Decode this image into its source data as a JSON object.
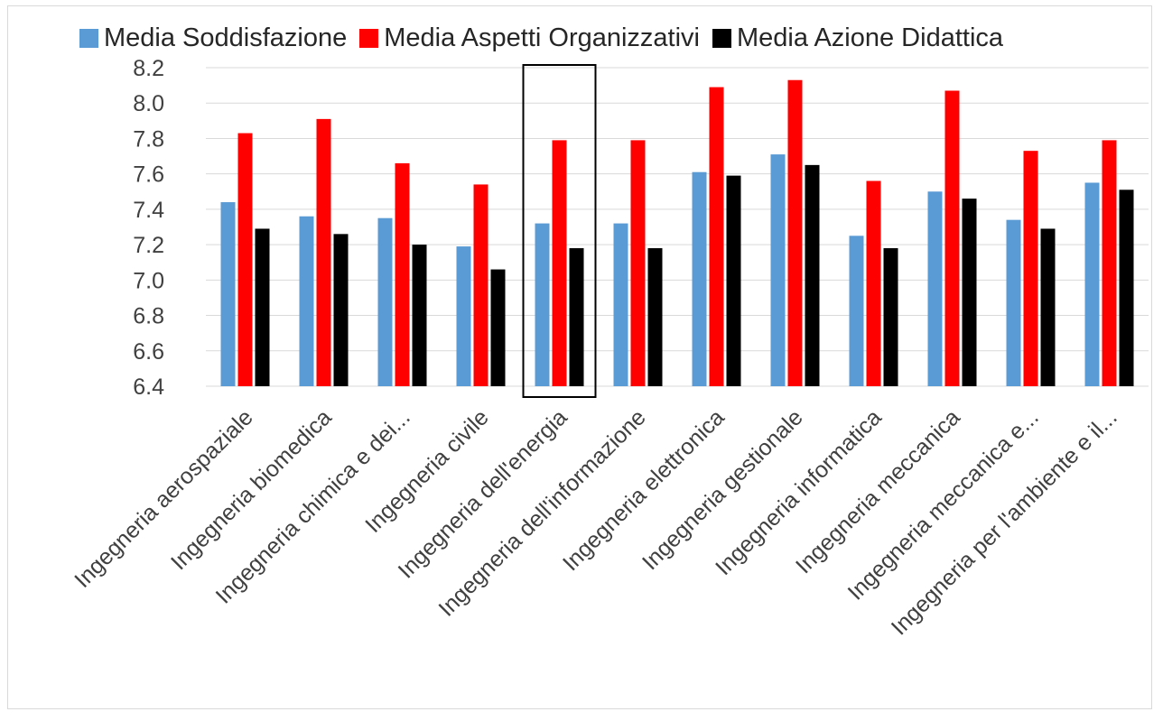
{
  "chart_data": {
    "type": "bar",
    "title": "",
    "xlabel": "",
    "ylabel": "",
    "ylim": [
      6.4,
      8.2
    ],
    "yticks": [
      "6.4",
      "6.6",
      "6.8",
      "7.0",
      "7.2",
      "7.4",
      "7.6",
      "7.8",
      "8.0",
      "8.2"
    ],
    "grid": true,
    "legend_position": "top",
    "categories": [
      "Ingegneria aerospaziale",
      "Ingegneria biomedica",
      "Ingegneria chimica e dei...",
      "Ingegneria civile",
      "Ingegneria dell'energia",
      "Ingegneria dell'informazione",
      "Ingegneria elettronica",
      "Ingegneria gestionale",
      "Ingegneria informatica",
      "Ingegneria meccanica",
      "Ingegneria meccanica e...",
      "Ingegneria per l'ambiente e il..."
    ],
    "highlighted_category": "Ingegneria dell'energia",
    "series": [
      {
        "name": "Media Soddisfazione",
        "color": "#5b9bd5",
        "values": [
          7.44,
          7.36,
          7.35,
          7.19,
          7.32,
          7.32,
          7.61,
          7.71,
          7.25,
          7.5,
          7.34,
          7.55
        ]
      },
      {
        "name": "Media Aspetti Organizzativi",
        "color": "#ff0000",
        "values": [
          7.83,
          7.91,
          7.66,
          7.54,
          7.79,
          7.79,
          8.09,
          8.13,
          7.56,
          8.07,
          7.73,
          7.79
        ]
      },
      {
        "name": "Media Azione Didattica",
        "color": "#000000",
        "values": [
          7.29,
          7.26,
          7.2,
          7.06,
          7.18,
          7.18,
          7.59,
          7.65,
          7.18,
          7.46,
          7.29,
          7.51
        ]
      }
    ]
  }
}
